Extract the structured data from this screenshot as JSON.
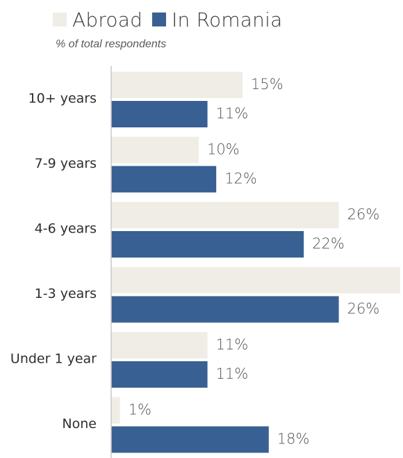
{
  "legend": {
    "items": [
      {
        "label": "Abroad",
        "color": "#efede5"
      },
      {
        "label": "In Romania",
        "color": "#386092"
      }
    ]
  },
  "subtitle": "% of total respondents",
  "chart_data": {
    "type": "bar",
    "orientation": "horizontal",
    "categories": [
      "10+ years",
      "7-9 years",
      "4-6 years",
      "1-3 years",
      "Under 1 year",
      "None"
    ],
    "series": [
      {
        "name": "Abroad",
        "color": "#efede5",
        "values": [
          15,
          10,
          26,
          33,
          11,
          1
        ],
        "labels": [
          "15%",
          "10%",
          "26%",
          "",
          "11%",
          "1%"
        ]
      },
      {
        "name": "In Romania",
        "color": "#386092",
        "values": [
          11,
          12,
          22,
          26,
          11,
          18
        ],
        "labels": [
          "11%",
          "12%",
          "22%",
          "26%",
          "11%",
          "18%"
        ]
      }
    ],
    "value_unit": "%",
    "legend_position": "top",
    "grid": false
  }
}
